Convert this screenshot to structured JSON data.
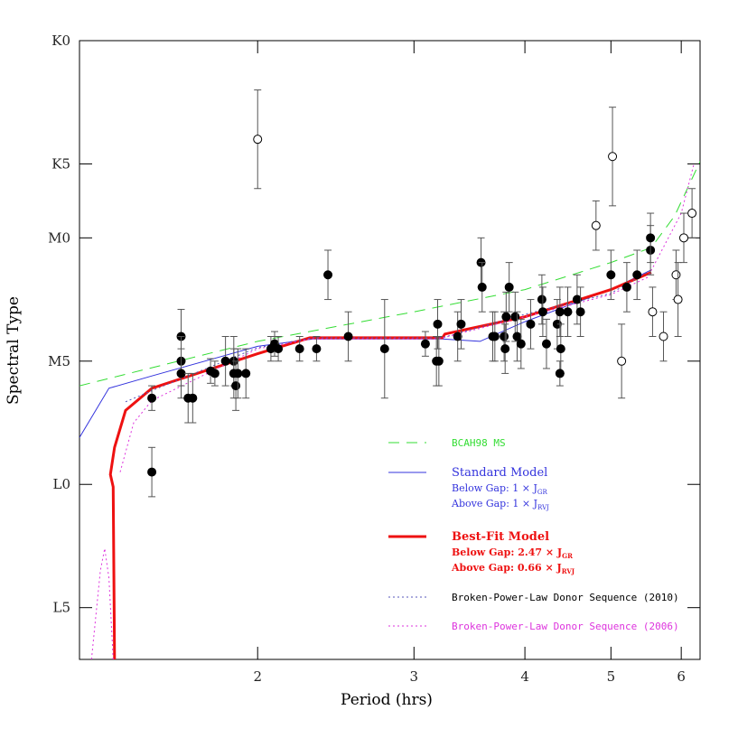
{
  "chart_data": {
    "type": "scatter",
    "x_label": "Period (hrs)",
    "y_label": "Spectral Type",
    "log_x": true,
    "xlim": [
      1.26,
      6.3
    ],
    "xticks": [
      2,
      3,
      4,
      5,
      6
    ],
    "ylim": [
      25.1,
      0
    ],
    "yticks": [
      {
        "value": 0,
        "label": "K0"
      },
      {
        "value": 5,
        "label": "K5"
      },
      {
        "value": 8,
        "label": "M0"
      },
      {
        "value": 13,
        "label": "M5"
      },
      {
        "value": 18,
        "label": "L0"
      },
      {
        "value": 23,
        "label": "L5"
      }
    ],
    "points": {
      "color": "#000000",
      "x": [
        1.52,
        1.52,
        1.64,
        1.64,
        1.64,
        1.67,
        1.69,
        1.77,
        1.79,
        1.84,
        1.88,
        1.88,
        1.89,
        1.9,
        1.94,
        2.07,
        2.09,
        2.11,
        2.23,
        2.33,
        2.4,
        2.53,
        2.78,
        3.09,
        3.18,
        3.2,
        3.19,
        3.36,
        3.39,
        3.57,
        3.58,
        3.68,
        3.7,
        3.79,
        3.8,
        3.81,
        3.84,
        3.9,
        3.92,
        3.96,
        4.06,
        4.18,
        4.19,
        4.23,
        4.35,
        4.38,
        4.39,
        4.38,
        4.47,
        4.58,
        4.62,
        5.0,
        5.21,
        5.35,
        5.54,
        5.54
      ],
      "values": [
        14.5,
        17.5,
        12.0,
        13.0,
        13.5,
        14.5,
        14.5,
        13.4,
        13.5,
        13.0,
        13.0,
        13.5,
        14.0,
        13.5,
        13.5,
        12.5,
        12.3,
        12.5,
        12.5,
        12.5,
        9.5,
        12.0,
        12.5,
        12.3,
        13.0,
        13.0,
        11.5,
        12.0,
        11.5,
        9.0,
        10.0,
        12.0,
        12.0,
        12.0,
        12.5,
        11.2,
        10.0,
        11.2,
        12.0,
        12.3,
        11.5,
        10.5,
        11.0,
        12.3,
        11.5,
        11.0,
        12.5,
        13.5,
        11.0,
        10.5,
        11.0,
        9.5,
        10.0,
        9.5,
        8.5,
        8.0
      ],
      "errors": [
        0.5,
        1.0,
        1.1,
        1.0,
        1.0,
        1.0,
        1.0,
        0.5,
        0.5,
        1.0,
        1.0,
        1.0,
        1.0,
        1.0,
        1.0,
        0.5,
        0.5,
        0.5,
        0.5,
        0.5,
        1.0,
        1.0,
        2.0,
        0.5,
        1.0,
        1.0,
        1.0,
        1.0,
        1.0,
        1.0,
        1.0,
        1.0,
        1.0,
        1.0,
        1.0,
        1.0,
        1.0,
        1.0,
        1.0,
        1.0,
        1.0,
        1.0,
        1.0,
        1.0,
        1.0,
        1.0,
        1.0,
        0.5,
        1.0,
        1.0,
        1.0,
        1.0,
        1.0,
        1.0,
        1.0,
        1.0
      ]
    },
    "open_points": {
      "color": "#000000",
      "x": [
        2.0,
        4.81,
        5.02,
        5.14,
        5.57,
        5.73,
        5.92,
        5.95,
        6.04,
        6.17
      ],
      "values": [
        4.0,
        7.5,
        4.7,
        13.0,
        11.0,
        12.0,
        9.5,
        10.5,
        8.0,
        7.0
      ],
      "errors": [
        2.0,
        1.0,
        2.0,
        1.5,
        1.0,
        1.0,
        1.0,
        1.5,
        1.0,
        1.0
      ]
    },
    "series": [
      {
        "name": "BCAH98 MS",
        "color": "#33dd33",
        "dash": "12,8",
        "width": 1,
        "x": [
          1.26,
          2.0,
          3.0,
          4.0,
          5.0,
          5.55,
          5.9,
          6.3
        ],
        "values": [
          14.0,
          12.2,
          11.0,
          10.1,
          9.0,
          8.4,
          7.1,
          4.9
        ]
      },
      {
        "name": "Standard Model",
        "color": "#3333dd",
        "dash": "none",
        "width": 1,
        "notes": [
          {
            "text": "Below Gap: 1 × J",
            "sub": "GR"
          },
          {
            "text": "Above Gap: 1 × J",
            "sub": "RVJ"
          }
        ],
        "x": [
          1.26,
          1.36,
          1.52,
          2.0,
          2.31,
          3.23,
          3.56,
          4.0,
          5.0,
          5.55
        ],
        "values": [
          16.1,
          14.1,
          13.6,
          12.4,
          12.1,
          12.1,
          12.2,
          11.4,
          10.1,
          9.3
        ]
      },
      {
        "name": "Best-Fit Model",
        "color": "#ee1111",
        "dash": "none",
        "width": 3,
        "notes": [
          {
            "text": "Below Gap: 2.47 × J",
            "sub": "GR"
          },
          {
            "text": "Above Gap: 0.66 × J",
            "sub": "RVJ"
          }
        ],
        "x": [
          1.38,
          1.375,
          1.365,
          1.38,
          1.42,
          1.52,
          2.0,
          2.29,
          3.23,
          3.25,
          4.0,
          5.0,
          5.55
        ],
        "values": [
          25.1,
          18.1,
          17.6,
          16.5,
          15.0,
          14.1,
          12.7,
          12.05,
          12.05,
          11.9,
          11.2,
          10.1,
          9.4
        ]
      },
      {
        "name": "Broken-Power-Law Donor Sequence (2010)",
        "color": "#5555bb",
        "dash": "2,3",
        "width": 1,
        "x": [
          1.42,
          1.52,
          2.0,
          2.31,
          3.23,
          4.0,
          5.0,
          5.55
        ],
        "values": [
          14.65,
          14.2,
          12.45,
          12.05,
          12.05,
          11.1,
          10.25,
          9.3
        ]
      },
      {
        "name": "Broken-Power-Law Donor Sequence (2006)",
        "color": "#dd33dd",
        "dash": "2,3",
        "width": 1,
        "x": [
          1.3,
          1.33,
          1.345,
          1.36,
          1.375,
          null,
          1.4,
          1.45,
          1.52,
          2.0,
          2.3,
          3.2,
          4.0,
          5.0,
          5.5,
          6.0,
          6.2
        ],
        "values": [
          25.1,
          21.5,
          20.6,
          21.8,
          25.1,
          null,
          17.5,
          15.5,
          14.6,
          12.5,
          12.1,
          12.1,
          11.2,
          10.3,
          9.6,
          7.0,
          5.0
        ]
      }
    ]
  }
}
